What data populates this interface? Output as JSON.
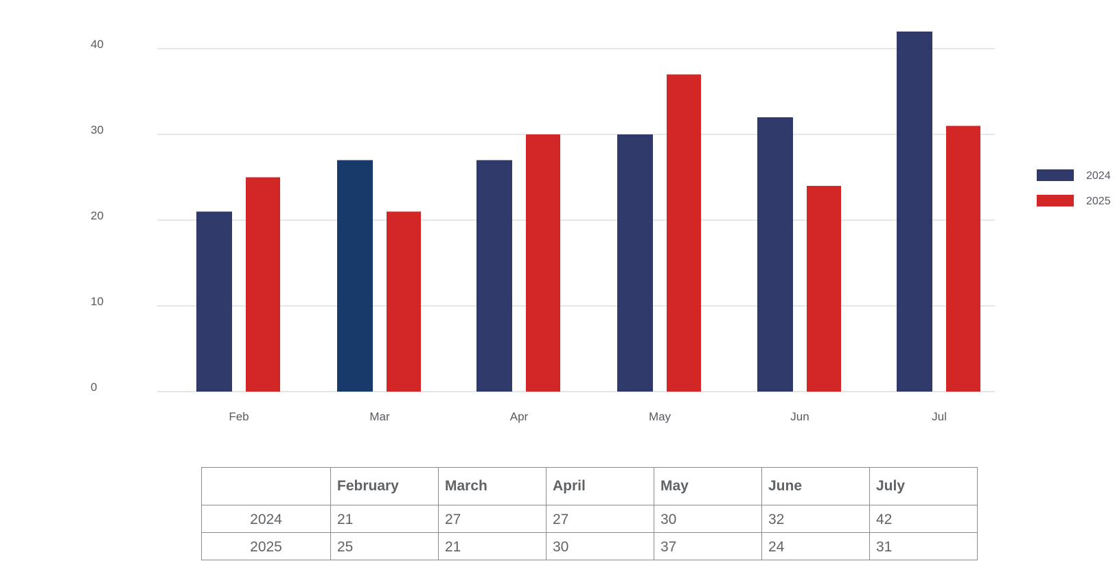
{
  "chart_data": {
    "type": "bar",
    "categories": [
      "Feb",
      "Mar",
      "Apr",
      "May",
      "Jun",
      "Jul"
    ],
    "series": [
      {
        "name": "2024",
        "values": [
          21,
          27,
          27,
          30,
          32,
          42
        ],
        "color": "#2f3a6b"
      },
      {
        "name": "2025",
        "values": [
          25,
          21,
          30,
          37,
          24,
          31
        ],
        "color": "#d32626"
      }
    ],
    "highlight_color": "#173a6b",
    "grid_color": "#e6e6e6",
    "ylim": [
      0,
      40
    ],
    "yticks": [
      0,
      10,
      20,
      30,
      40
    ],
    "grid": true,
    "legend_position": "right",
    "title": "",
    "xlabel": "",
    "ylabel": ""
  },
  "table": {
    "headers": [
      "",
      "February",
      "March",
      "April",
      "May",
      "June",
      "July"
    ],
    "rows": [
      {
        "label": "2024",
        "values": [
          "21",
          "27",
          "27",
          "30",
          "32",
          "42"
        ]
      },
      {
        "label": "2025",
        "values": [
          "25",
          "21",
          "30",
          "37",
          "24",
          "31"
        ]
      }
    ]
  }
}
